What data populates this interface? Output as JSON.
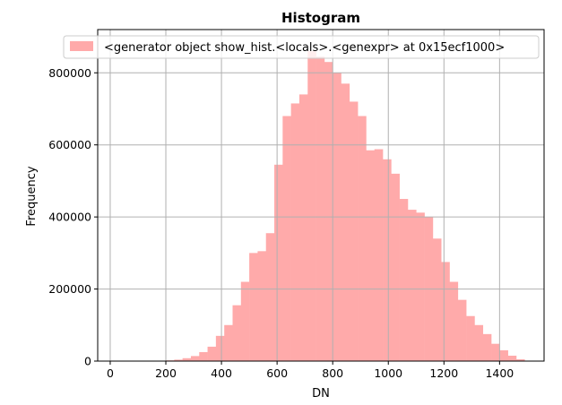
{
  "chart_data": {
    "type": "bar",
    "title": "Histogram",
    "xlabel": "DN",
    "ylabel": "Frequency",
    "xlim": [
      -45,
      1560
    ],
    "ylim": [
      0,
      920000
    ],
    "grid": true,
    "legend_position": "top-center",
    "bar_color": "#ffaaaa",
    "series": [
      {
        "name": "<generator object show_hist.<locals>.<genexpr> at 0x15ecf1000>",
        "bin_width": 30,
        "bin_starts": [
          200,
          230,
          260,
          290,
          320,
          350,
          380,
          410,
          440,
          470,
          500,
          530,
          560,
          590,
          620,
          650,
          680,
          710,
          740,
          770,
          800,
          830,
          860,
          890,
          920,
          950,
          980,
          1010,
          1040,
          1070,
          1100,
          1130,
          1160,
          1190,
          1220,
          1250,
          1280,
          1310,
          1340,
          1370,
          1400,
          1430,
          1460
        ],
        "values": [
          2000,
          4000,
          8000,
          14000,
          25000,
          40000,
          70000,
          100000,
          155000,
          220000,
          300000,
          305000,
          355000,
          545000,
          680000,
          715000,
          740000,
          860000,
          845000,
          830000,
          800000,
          770000,
          720000,
          680000,
          585000,
          588000,
          560000,
          520000,
          450000,
          420000,
          412000,
          400000,
          340000,
          275000,
          220000,
          170000,
          125000,
          100000,
          75000,
          48000,
          30000,
          15000,
          5000
        ]
      }
    ],
    "x_ticks": [
      "0",
      "200",
      "400",
      "600",
      "800",
      "1000",
      "1200",
      "1400"
    ],
    "y_ticks": [
      "0",
      "200000",
      "400000",
      "600000",
      "800000"
    ]
  }
}
